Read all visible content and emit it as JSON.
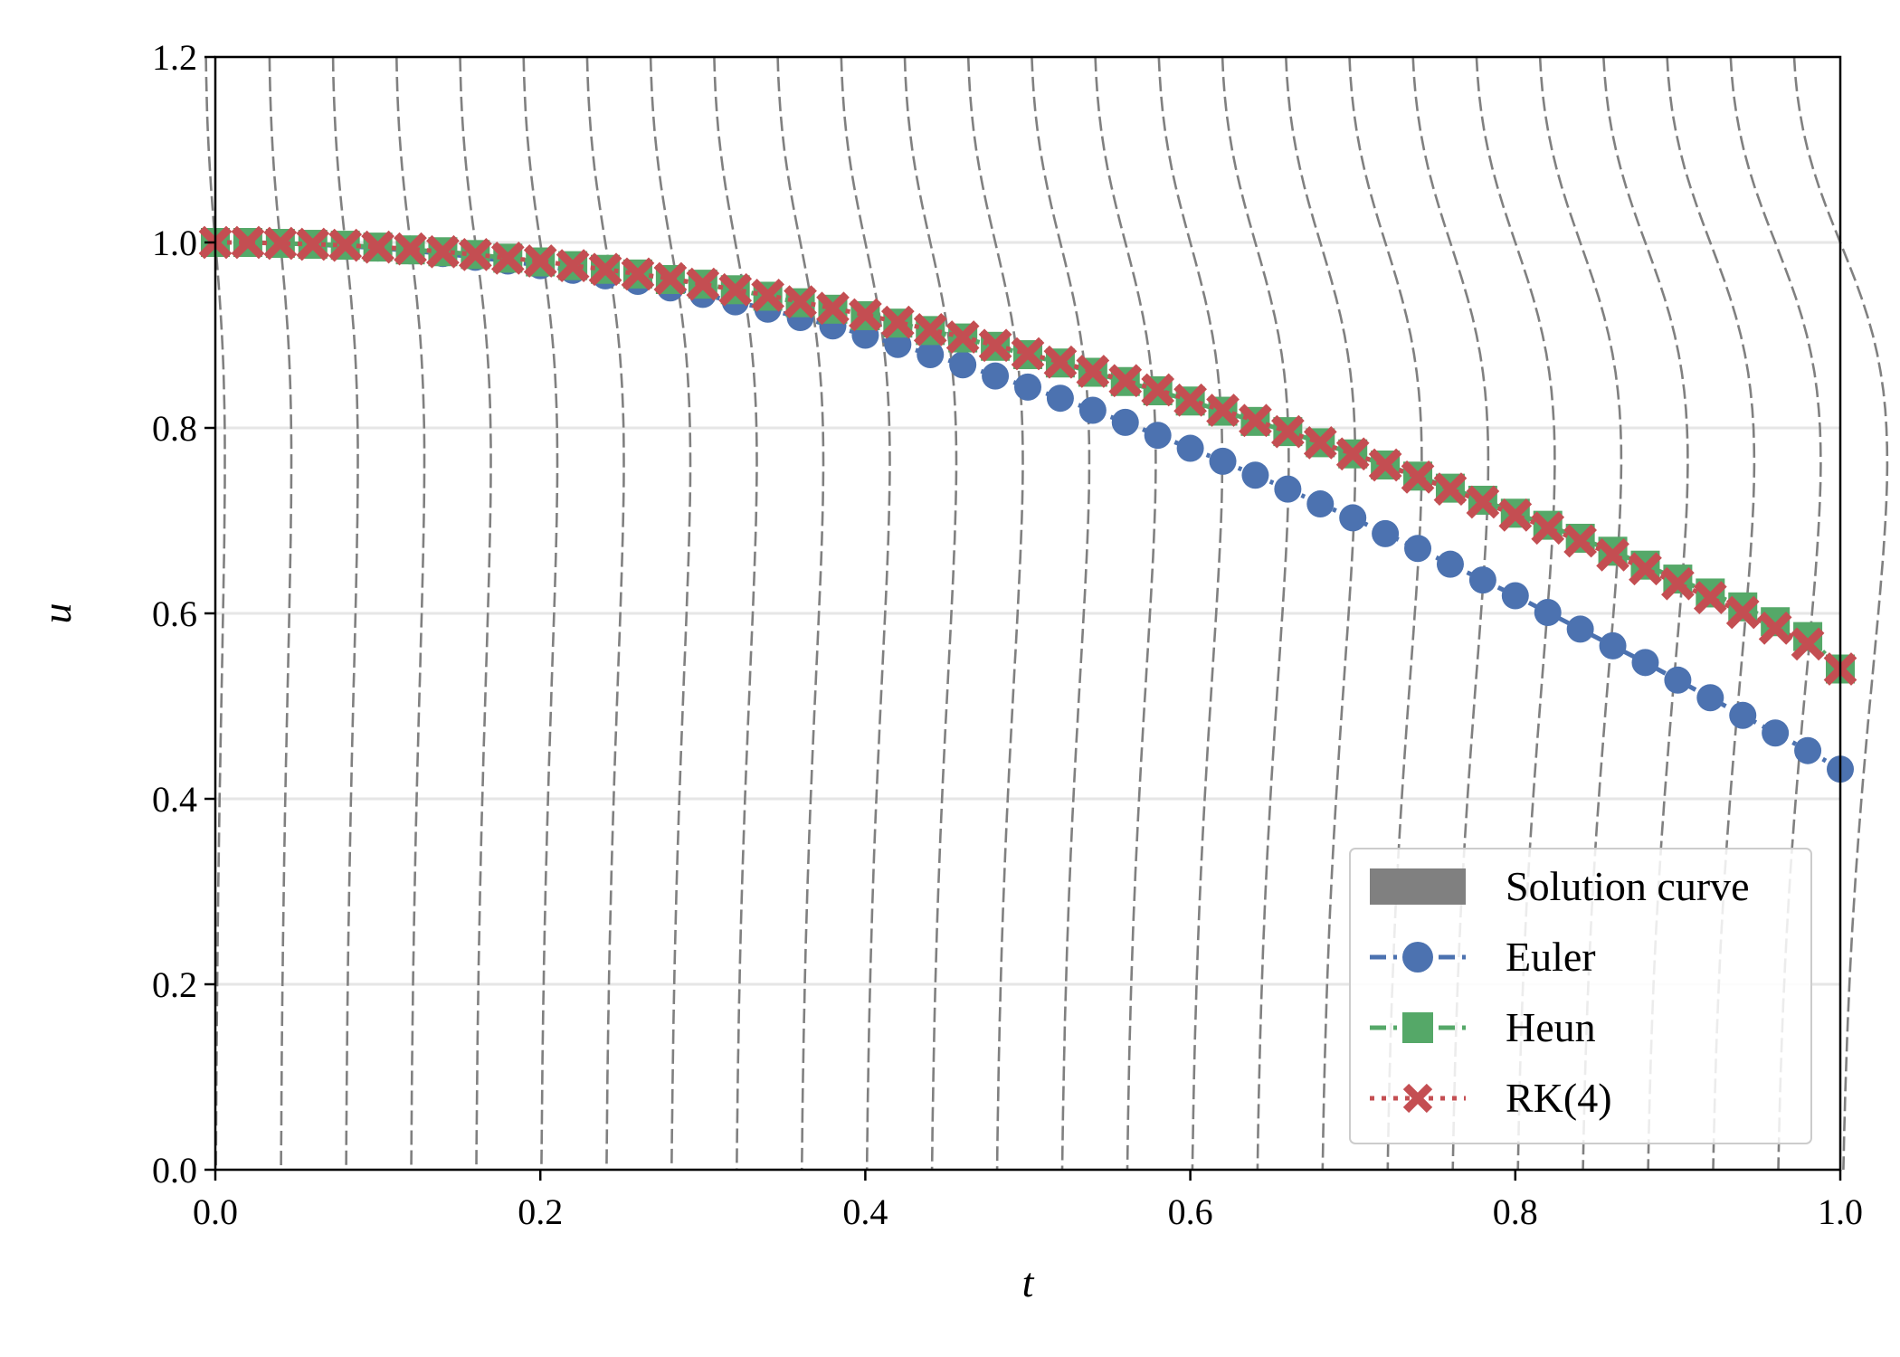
{
  "chart_data": {
    "type": "line",
    "xlabel": "t",
    "ylabel": "u",
    "xlim": [
      0.0,
      1.0
    ],
    "ylim": [
      0.0,
      1.2
    ],
    "xticks": [
      "0.0",
      "0.2",
      "0.4",
      "0.6",
      "0.8",
      "1.0"
    ],
    "yticks": [
      "0.0",
      "0.2",
      "0.4",
      "0.6",
      "0.8",
      "1.0",
      "1.2"
    ],
    "grid": "horizontal",
    "legend_position": "lower-right",
    "slope_field": {
      "label": "Solution curve",
      "color": "#808080",
      "t_start": 0.0,
      "t_step": 0.04,
      "count": 26
    },
    "x": [
      0.0,
      0.02,
      0.04,
      0.06,
      0.08,
      0.1,
      0.12,
      0.14,
      0.16,
      0.18,
      0.2,
      0.22,
      0.24,
      0.26,
      0.28,
      0.3,
      0.32,
      0.34,
      0.36,
      0.38,
      0.4,
      0.42,
      0.44,
      0.46,
      0.48,
      0.5,
      0.52,
      0.54,
      0.56,
      0.58,
      0.6,
      0.62,
      0.64,
      0.66,
      0.68,
      0.7,
      0.72,
      0.74,
      0.76,
      0.78,
      0.8,
      0.82,
      0.84,
      0.86,
      0.88,
      0.9,
      0.92,
      0.94,
      0.96,
      0.98,
      1.0
    ],
    "series": [
      {
        "name": "Euler",
        "color": "#4c72b0",
        "marker": "circle",
        "values": [
          1.0,
          1.0,
          0.999,
          0.998,
          0.996,
          0.994,
          0.991,
          0.988,
          0.984,
          0.98,
          0.975,
          0.97,
          0.964,
          0.958,
          0.951,
          0.944,
          0.936,
          0.928,
          0.919,
          0.91,
          0.9,
          0.89,
          0.879,
          0.868,
          0.856,
          0.844,
          0.832,
          0.819,
          0.806,
          0.792,
          0.778,
          0.764,
          0.749,
          0.734,
          0.718,
          0.703,
          0.686,
          0.67,
          0.653,
          0.636,
          0.619,
          0.601,
          0.583,
          0.565,
          0.547,
          0.528,
          0.509,
          0.49,
          0.471,
          0.452,
          0.432
        ]
      },
      {
        "name": "Heun",
        "color": "#55a868",
        "marker": "square",
        "values": [
          1.0,
          1.0,
          0.999,
          0.998,
          0.997,
          0.995,
          0.992,
          0.99,
          0.987,
          0.983,
          0.979,
          0.975,
          0.971,
          0.966,
          0.96,
          0.955,
          0.949,
          0.942,
          0.935,
          0.928,
          0.921,
          0.913,
          0.905,
          0.897,
          0.888,
          0.879,
          0.87,
          0.86,
          0.85,
          0.84,
          0.829,
          0.818,
          0.807,
          0.796,
          0.784,
          0.772,
          0.76,
          0.748,
          0.735,
          0.722,
          0.708,
          0.695,
          0.681,
          0.667,
          0.652,
          0.637,
          0.622,
          0.607,
          0.591,
          0.575,
          0.54
        ]
      },
      {
        "name": "RK(4)",
        "color": "#c44e52",
        "marker": "x",
        "values": [
          1.0,
          1.0,
          0.999,
          0.998,
          0.997,
          0.995,
          0.993,
          0.99,
          0.987,
          0.983,
          0.98,
          0.975,
          0.971,
          0.966,
          0.961,
          0.955,
          0.949,
          0.943,
          0.936,
          0.929,
          0.922,
          0.914,
          0.906,
          0.898,
          0.889,
          0.88,
          0.871,
          0.861,
          0.851,
          0.841,
          0.83,
          0.819,
          0.808,
          0.796,
          0.784,
          0.772,
          0.76,
          0.747,
          0.734,
          0.72,
          0.706,
          0.692,
          0.678,
          0.663,
          0.648,
          0.632,
          0.617,
          0.601,
          0.584,
          0.567,
          0.54
        ]
      }
    ]
  }
}
